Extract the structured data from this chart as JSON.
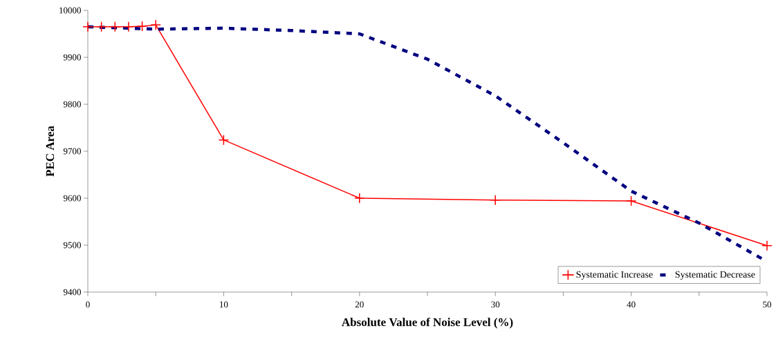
{
  "chart_data": {
    "type": "line",
    "xlabel": "Absolute Value of Noise Level (%)",
    "ylabel": "PEC Area",
    "xlim": [
      0,
      50
    ],
    "ylim": [
      9400,
      10000
    ],
    "xticks": [
      0,
      {
        "value": 5,
        "label": null
      },
      10,
      {
        "value": 15,
        "label": null
      },
      20,
      {
        "value": 25,
        "label": null
      },
      30,
      {
        "value": 35,
        "label": null
      },
      40,
      {
        "value": 45,
        "label": null
      },
      50
    ],
    "yticks": [
      9400,
      9500,
      9600,
      9700,
      9800,
      9900,
      10000
    ],
    "grid": false,
    "legend": "bottom right",
    "series": [
      {
        "name": "Systematic Increase",
        "color": "#ff0000",
        "marker": "cross",
        "line_style": "solid",
        "x": [
          0,
          1,
          2,
          3,
          4,
          5,
          10,
          20,
          30,
          40,
          50
        ],
        "values": [
          9965,
          9965,
          9965,
          9965,
          9966,
          9969,
          9724,
          9600,
          9596,
          9594,
          9499
        ]
      },
      {
        "name": "Systematic Decrease",
        "color": "#000080",
        "marker": "none",
        "line_style": "dashed",
        "x": [
          0,
          5,
          10,
          15,
          20,
          25,
          30,
          35,
          40,
          45,
          50
        ],
        "values": [
          9965,
          9960,
          9962,
          9957,
          9950,
          9896,
          9818,
          9718,
          9615,
          9547,
          9465
        ]
      }
    ]
  }
}
